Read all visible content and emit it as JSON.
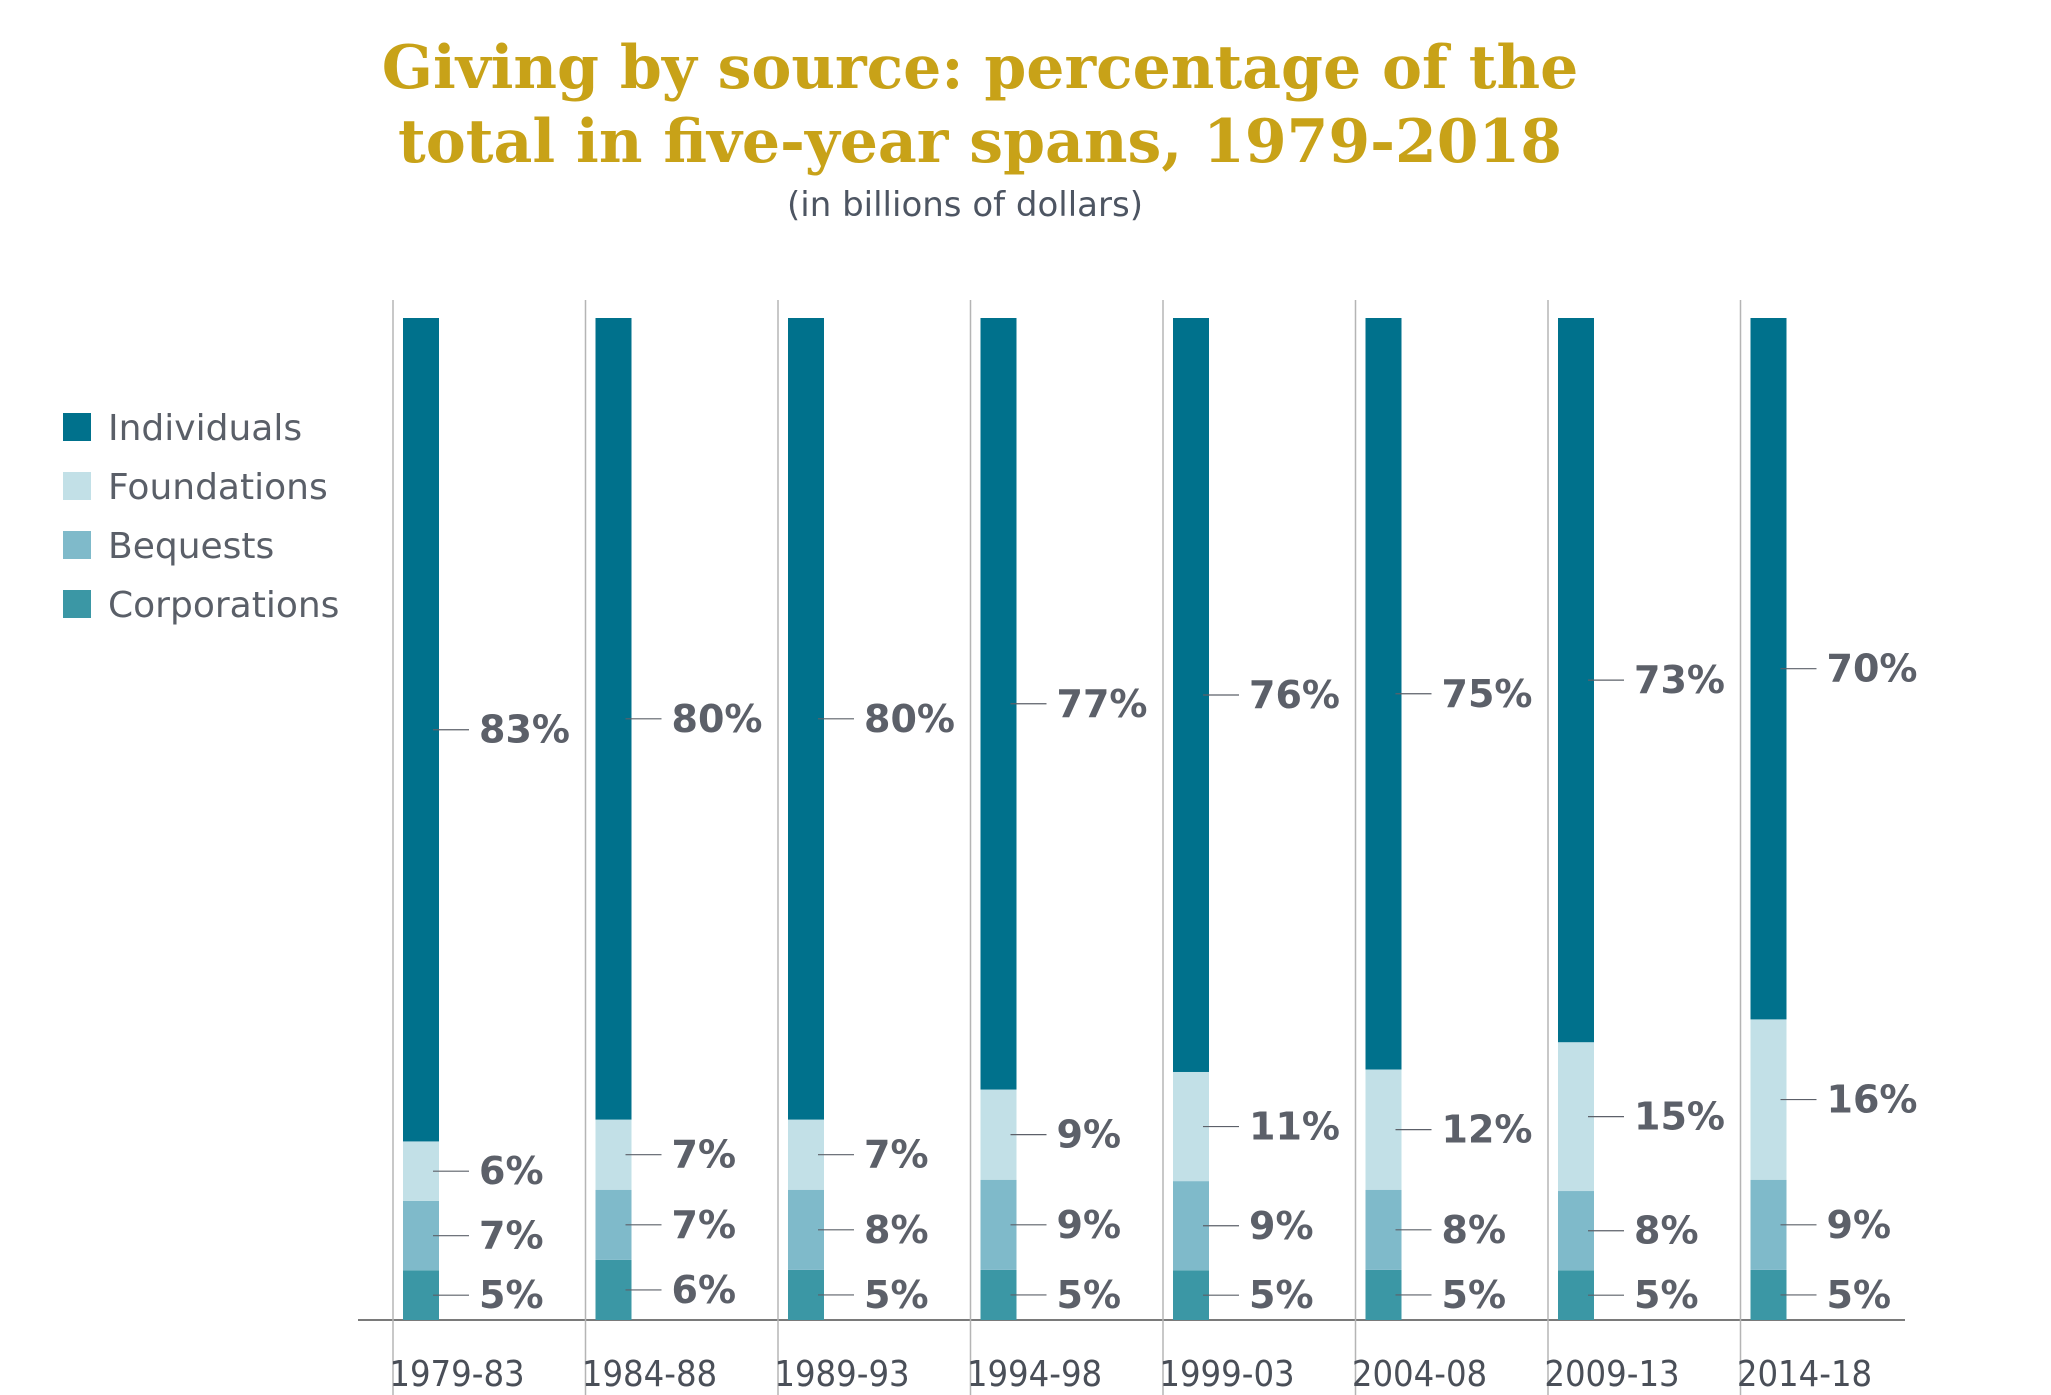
{
  "chart_data": {
    "type": "bar",
    "stacked": true,
    "title": "Giving by source: percentage of the total in five-year spans, 1979-2018",
    "title_lines": [
      "Giving by source: percentage of the",
      "total in five-year spans, 1979-2018"
    ],
    "subtitle": "(in billions of dollars)",
    "categories": [
      "1979-83",
      "1984-88",
      "1989-93",
      "1994-98",
      "1999-03",
      "2004-08",
      "2009-13",
      "2014-18"
    ],
    "series": [
      {
        "name": "Corporations",
        "color": "#3b97a5",
        "values": [
          5,
          6,
          5,
          5,
          5,
          5,
          5,
          5
        ]
      },
      {
        "name": "Bequests",
        "color": "#7fbaca",
        "values": [
          7,
          7,
          8,
          9,
          9,
          8,
          8,
          9
        ]
      },
      {
        "name": "Foundations",
        "color": "#c2e0e7",
        "values": [
          6,
          7,
          7,
          9,
          11,
          12,
          15,
          16
        ]
      },
      {
        "name": "Individuals",
        "color": "#00718c",
        "values": [
          83,
          80,
          80,
          77,
          76,
          75,
          73,
          70
        ]
      }
    ],
    "legend_order": [
      "Individuals",
      "Foundations",
      "Bequests",
      "Corporations"
    ],
    "legend_position": "left",
    "value_suffix": "%",
    "grid": false
  }
}
